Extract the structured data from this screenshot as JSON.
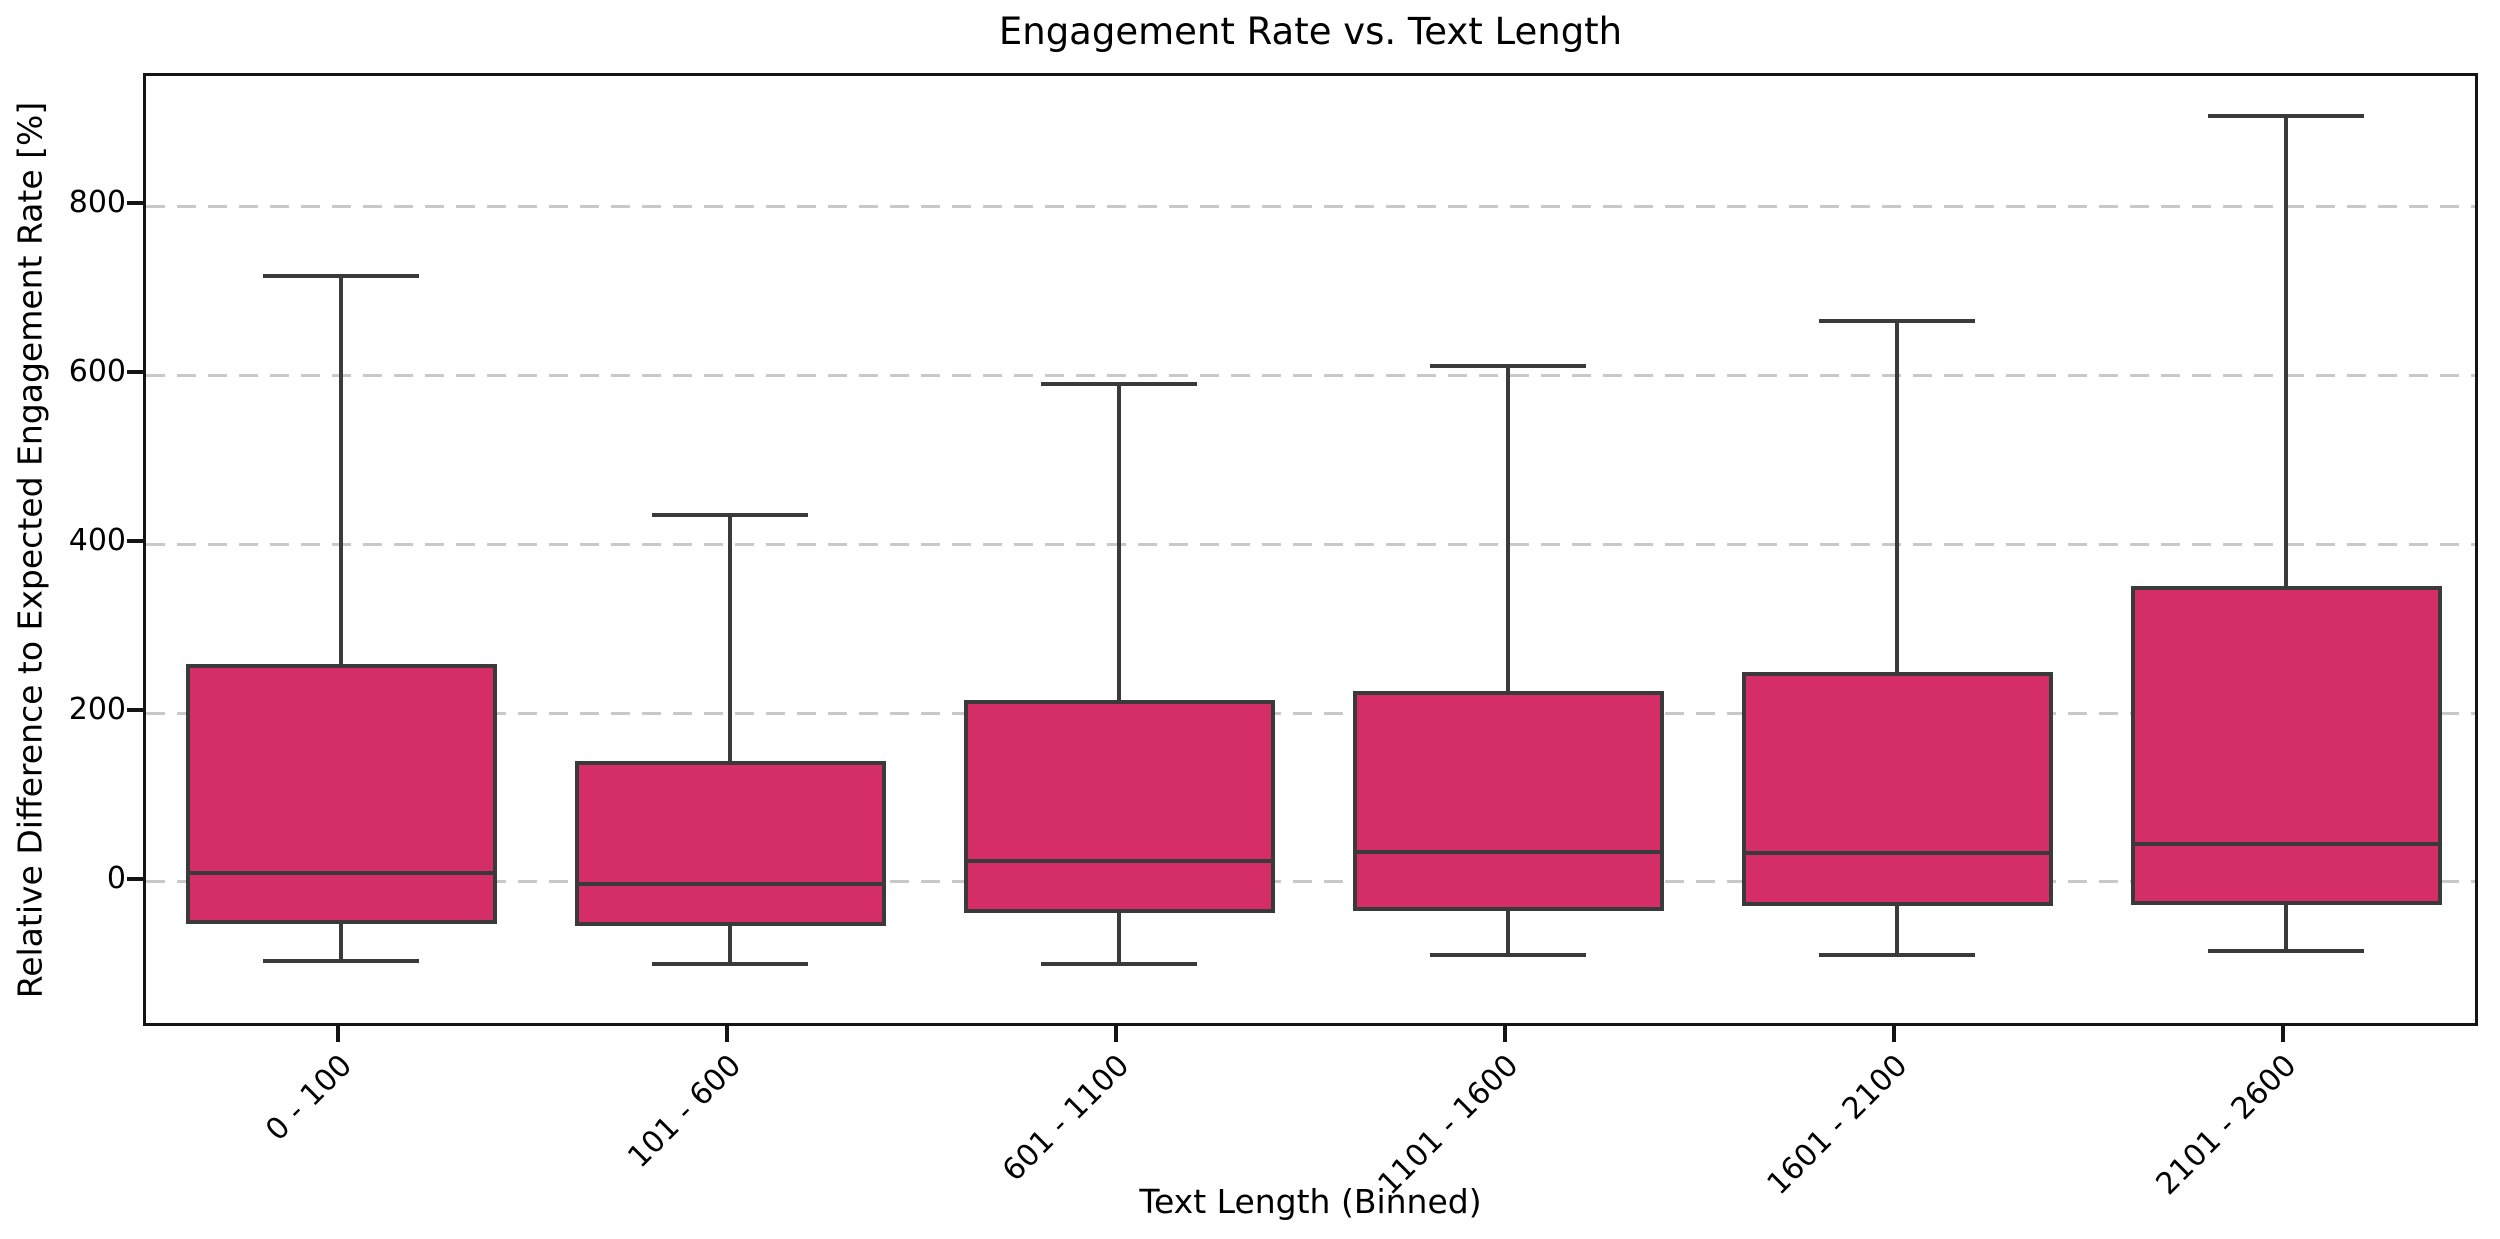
{
  "chart_data": {
    "type": "box",
    "title": "Engagement Rate vs. Text Length",
    "xlabel": "Text Length (Binned)",
    "ylabel": "Relative Difference to Expected Engagement Rate [%]",
    "categories": [
      "0 - 100",
      "101 - 600",
      "601 - 1100",
      "1101 - 1600",
      "1601 - 2100",
      "2101 - 2600"
    ],
    "boxes": [
      {
        "category": "0 - 100",
        "min": -93,
        "q1": -50,
        "median": 11,
        "q3": 258,
        "max": 717
      },
      {
        "category": "101 - 600",
        "min": -97,
        "q1": -52,
        "median": -2,
        "q3": 143,
        "max": 434
      },
      {
        "category": "601 - 1100",
        "min": -97,
        "q1": -37,
        "median": 25,
        "q3": 215,
        "max": 590
      },
      {
        "category": "1101 - 1600",
        "min": -87,
        "q1": -34,
        "median": 36,
        "q3": 226,
        "max": 611
      },
      {
        "category": "1601 - 2100",
        "min": -87,
        "q1": -28,
        "median": 34,
        "q3": 248,
        "max": 664
      },
      {
        "category": "2101 - 2600",
        "min": -82,
        "q1": -27,
        "median": 45,
        "q3": 350,
        "max": 907
      }
    ],
    "yticks": [
      0,
      200,
      400,
      600,
      800
    ],
    "ylim": [
      -174,
      954
    ],
    "grid": "horizontal-dashed",
    "xtick_rotation": 45,
    "legend": "none",
    "colors": {
      "box_fill": "#d42d68",
      "box_edge": "#3a3a3a",
      "grid": "#c9c9c9",
      "spine": "#141414",
      "background": "#ffffff"
    }
  }
}
